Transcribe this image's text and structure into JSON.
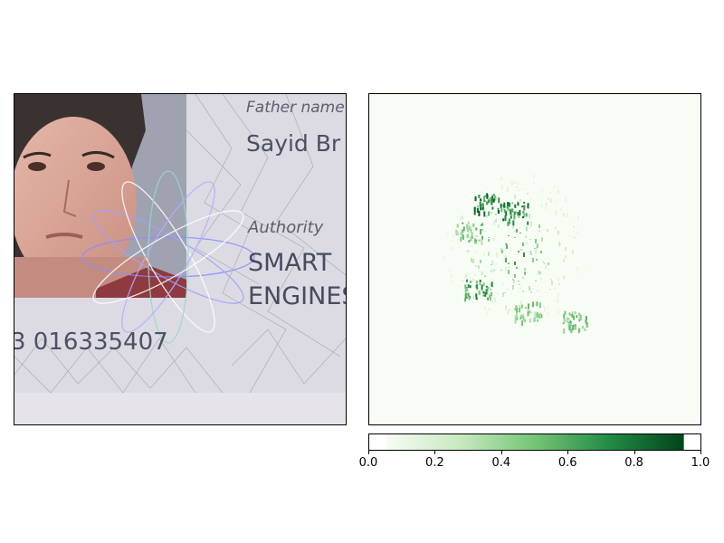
{
  "left_image": {
    "label_father": "Father name",
    "value_father": "Sayid Br",
    "label_authority": "Authority",
    "value_authority_line1": "SMART",
    "value_authority_line2": "ENGINES",
    "document_number": "3 016335407"
  },
  "chart_data": {
    "type": "heatmap",
    "colormap": "Greens",
    "colorbar": {
      "min": 0.0,
      "max": 1.0,
      "ticks": [
        0.0,
        0.2,
        0.4,
        0.6,
        0.8,
        1.0
      ],
      "tick_labels": [
        "0.0",
        "0.2",
        "0.4",
        "0.6",
        "0.8",
        "1.0"
      ]
    },
    "title": "",
    "xlabel": "",
    "ylabel": ""
  },
  "colors": {
    "cmap_low": "#f7fcf5",
    "cmap_mid": "#74c476",
    "cmap_high": "#00441b"
  }
}
